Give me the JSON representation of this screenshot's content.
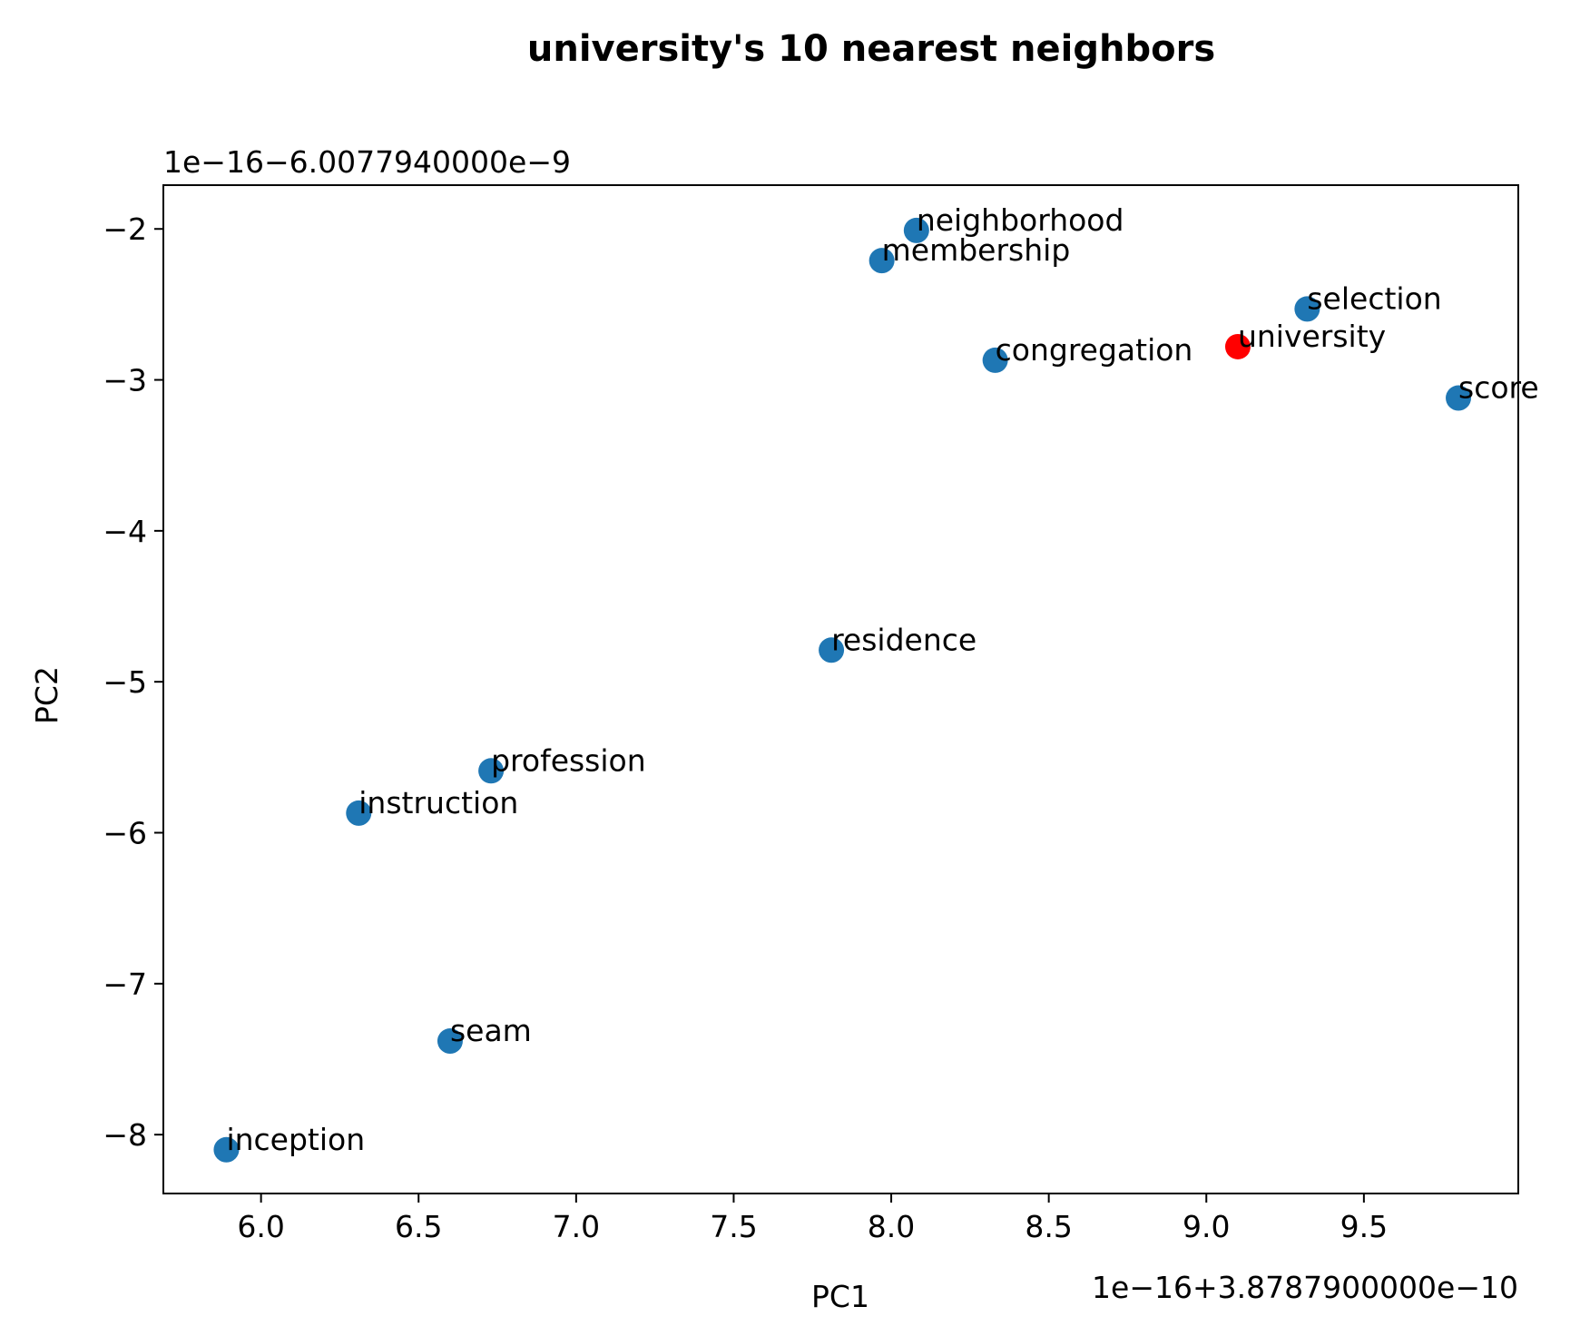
{
  "chart_data": {
    "type": "scatter",
    "title": "university's 10 nearest neighbors",
    "xlabel": "PC1",
    "ylabel": "PC2",
    "x_offset_label": "1e−16+3.8787900000e−10",
    "y_offset_label": "1e−16−6.0077940000e−9",
    "xlim": [
      5.69,
      9.99
    ],
    "ylim": [
      -8.39,
      -1.71
    ],
    "x_ticks": [
      6.0,
      6.5,
      7.0,
      7.5,
      8.0,
      8.5,
      9.0,
      9.5
    ],
    "x_tick_labels": [
      "6.0",
      "6.5",
      "7.0",
      "7.5",
      "8.0",
      "8.5",
      "9.0",
      "9.5"
    ],
    "y_ticks": [
      -2,
      -3,
      -4,
      -5,
      -6,
      -7,
      -8
    ],
    "y_tick_labels": [
      "−2",
      "−3",
      "−4",
      "−5",
      "−6",
      "−7",
      "−8"
    ],
    "grid": false,
    "colors": {
      "neighbor": "#1f77b4",
      "query": "#ff0000"
    },
    "points": [
      {
        "label": "neighborhood",
        "x": 8.08,
        "y": -2.01,
        "role": "neighbor"
      },
      {
        "label": "membership",
        "x": 7.97,
        "y": -2.21,
        "role": "neighbor"
      },
      {
        "label": "selection",
        "x": 9.32,
        "y": -2.53,
        "role": "neighbor"
      },
      {
        "label": "university",
        "x": 9.1,
        "y": -2.78,
        "role": "query"
      },
      {
        "label": "congregation",
        "x": 8.33,
        "y": -2.87,
        "role": "neighbor"
      },
      {
        "label": "score",
        "x": 9.8,
        "y": -3.12,
        "role": "neighbor"
      },
      {
        "label": "residence",
        "x": 7.81,
        "y": -4.79,
        "role": "neighbor"
      },
      {
        "label": "profession",
        "x": 6.73,
        "y": -5.59,
        "role": "neighbor"
      },
      {
        "label": "instruction",
        "x": 6.31,
        "y": -5.87,
        "role": "neighbor"
      },
      {
        "label": "seam",
        "x": 6.6,
        "y": -7.38,
        "role": "neighbor"
      },
      {
        "label": "inception",
        "x": 5.89,
        "y": -8.1,
        "role": "neighbor"
      }
    ]
  }
}
